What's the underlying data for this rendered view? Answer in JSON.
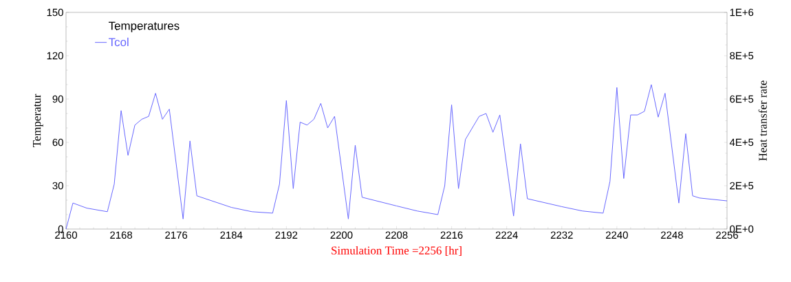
{
  "chart_data": {
    "type": "line",
    "xlabel": "Simulation Time =2256 [hr]",
    "ylabel": "Temperatur",
    "y2label": "Heat transfer rate",
    "legend_title": "Temperatures",
    "legend": "top left",
    "grid": false,
    "x": [
      2160,
      2161,
      2163,
      2166,
      2167,
      2168,
      2169,
      2170,
      2171,
      2172,
      2173,
      2174,
      2175,
      2177,
      2178,
      2179,
      2184,
      2187,
      2190,
      2191,
      2192,
      2193,
      2194,
      2195,
      2196,
      2197,
      2198,
      2199,
      2201,
      2202,
      2203,
      2208,
      2211,
      2214,
      2215,
      2216,
      2217,
      2218,
      2219,
      2220,
      2221,
      2222,
      2223,
      2225,
      2226,
      2227,
      2232,
      2235,
      2238,
      2239,
      2240,
      2241,
      2242,
      2243,
      2244,
      2245,
      2246,
      2247,
      2249,
      2250,
      2251,
      2252,
      2256
    ],
    "series": [
      {
        "name": "Tcol",
        "color": "#6666ff",
        "values": [
          0,
          18,
          14.5,
          12,
          31,
          82,
          51,
          72,
          76,
          78,
          94,
          76,
          83,
          7,
          61,
          23,
          15,
          12,
          11,
          31,
          89,
          28,
          74,
          72,
          76,
          87,
          70,
          78,
          7,
          58,
          22,
          16,
          12.5,
          10,
          30,
          86,
          28,
          62,
          70,
          78,
          80,
          67,
          79,
          9,
          59,
          21,
          15.5,
          12.5,
          11,
          33,
          98,
          35,
          79,
          79,
          81.5,
          100,
          77.5,
          94,
          18,
          66,
          23,
          21.5,
          19.5
        ]
      }
    ],
    "xlim": [
      2160,
      2256
    ],
    "xticks": [
      2160,
      2168,
      2176,
      2184,
      2192,
      2200,
      2208,
      2216,
      2224,
      2232,
      2240,
      2248,
      2256
    ],
    "ylim": [
      0,
      150
    ],
    "yticks": [
      0,
      30,
      60,
      90,
      120,
      150
    ],
    "y2lim": [
      0,
      1000000
    ],
    "y2ticks": [
      {
        "value": 0,
        "label": "0E+0"
      },
      {
        "value": 200000,
        "label": "2E+5"
      },
      {
        "value": 400000,
        "label": "4E+5"
      },
      {
        "value": 600000,
        "label": "6E+5"
      },
      {
        "value": 800000,
        "label": "8E+5"
      },
      {
        "value": 1000000,
        "label": "1E+6"
      }
    ]
  }
}
